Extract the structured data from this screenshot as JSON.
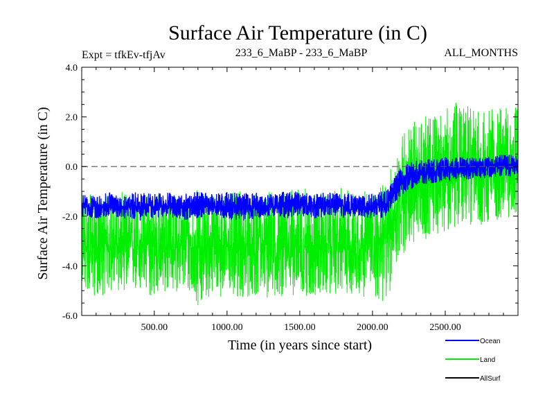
{
  "chart_data": {
    "type": "line",
    "title": "Surface Air Temperature (in C)",
    "subtitle_left": "Expt = tfkEv-tfjAv",
    "subtitle_center": "233_6_MaBP - 233_6_MaBP",
    "subtitle_right": "ALL_MONTHS",
    "xlabel": "Time (in years since start)",
    "ylabel": "Surface Air Temperature (in C)",
    "xlim": [
      1,
      3000
    ],
    "ylim": [
      -6,
      4
    ],
    "xticks": [
      {
        "value": 500,
        "label": "500.00"
      },
      {
        "value": 1000,
        "label": "1000.00"
      },
      {
        "value": 1500,
        "label": "1500.00"
      },
      {
        "value": 2000,
        "label": "2000.00"
      },
      {
        "value": 2500,
        "label": "2500.00"
      }
    ],
    "yticks": [
      {
        "value": 4,
        "label": "4.0"
      },
      {
        "value": 2,
        "label": "2.0"
      },
      {
        "value": 0,
        "label": "0.0"
      },
      {
        "value": -2,
        "label": "-2.0"
      },
      {
        "value": -4,
        "label": "-4.0"
      },
      {
        "value": -6,
        "label": "-6.0"
      }
    ],
    "reference_line": {
      "y": 0,
      "style": "dashed"
    },
    "legend_position": "below-right",
    "series": [
      {
        "name": "Land",
        "color": "#00ee00",
        "x": [
          1,
          100,
          200,
          300,
          400,
          500,
          600,
          700,
          800,
          900,
          1000,
          1100,
          1200,
          1300,
          1400,
          1500,
          1600,
          1700,
          1800,
          1900,
          2000,
          2050,
          2100,
          2150,
          2200,
          2300,
          2400,
          2500,
          2600,
          2700,
          2800,
          2900,
          3000
        ],
        "mean": [
          -3.2,
          -3.2,
          -3.2,
          -3.2,
          -3.2,
          -3.2,
          -3.2,
          -3.2,
          -3.2,
          -3.2,
          -3.2,
          -3.2,
          -3.2,
          -3.2,
          -3.2,
          -3.15,
          -3.15,
          -3.15,
          -3.15,
          -3.15,
          -3.15,
          -3.1,
          -3.0,
          -2.0,
          -1.1,
          -0.7,
          -0.4,
          -0.2,
          -0.2,
          -0.1,
          -0.1,
          -0.05,
          0.0
        ],
        "min": [
          -4.9,
          -5.3,
          -5.1,
          -5.0,
          -5.2,
          -5.3,
          -5.1,
          -5.0,
          -5.6,
          -5.2,
          -5.3,
          -5.4,
          -5.2,
          -5.4,
          -5.2,
          -5.2,
          -5.3,
          -5.2,
          -5.1,
          -5.3,
          -5.2,
          -5.5,
          -5.7,
          -4.2,
          -3.6,
          -3.2,
          -2.8,
          -2.6,
          -2.5,
          -2.3,
          -2.4,
          -2.1,
          -2.0
        ],
        "max": [
          -1.0,
          -1.2,
          -1.1,
          -1.0,
          -1.1,
          -1.0,
          -1.1,
          -1.2,
          -0.9,
          -1.0,
          -1.1,
          -1.0,
          -1.1,
          -0.9,
          -1.0,
          -0.8,
          -1.0,
          -1.1,
          -0.8,
          -1.0,
          -0.9,
          -0.9,
          -0.5,
          0.4,
          1.5,
          1.9,
          2.1,
          2.3,
          2.7,
          2.3,
          2.3,
          2.4,
          2.5
        ]
      },
      {
        "name": "Ocean",
        "color": "#0000ff",
        "x": [
          1,
          100,
          200,
          300,
          400,
          500,
          600,
          700,
          800,
          900,
          1000,
          1100,
          1200,
          1300,
          1400,
          1500,
          1600,
          1700,
          1800,
          1900,
          2000,
          2050,
          2100,
          2150,
          2200,
          2300,
          2400,
          2500,
          2600,
          2700,
          2800,
          2900,
          3000
        ],
        "mean": [
          -1.6,
          -1.6,
          -1.6,
          -1.6,
          -1.6,
          -1.6,
          -1.6,
          -1.6,
          -1.6,
          -1.6,
          -1.6,
          -1.6,
          -1.6,
          -1.6,
          -1.6,
          -1.55,
          -1.55,
          -1.55,
          -1.55,
          -1.55,
          -1.55,
          -1.55,
          -1.5,
          -1.0,
          -0.6,
          -0.35,
          -0.2,
          -0.1,
          -0.05,
          0.0,
          0.0,
          0.05,
          0.05
        ],
        "min": [
          -2.0,
          -2.1,
          -2.0,
          -2.1,
          -2.2,
          -2.1,
          -2.0,
          -2.2,
          -2.1,
          -2.0,
          -2.1,
          -2.2,
          -2.1,
          -2.0,
          -2.1,
          -2.0,
          -2.1,
          -2.0,
          -2.1,
          -2.0,
          -2.1,
          -2.1,
          -2.0,
          -1.5,
          -1.2,
          -0.8,
          -0.7,
          -0.6,
          -0.6,
          -0.5,
          -0.5,
          -0.4,
          -0.4
        ],
        "max": [
          -1.1,
          -1.2,
          -1.0,
          -1.1,
          -1.0,
          -1.1,
          -1.0,
          -1.1,
          -1.0,
          -1.1,
          -1.0,
          -1.1,
          -1.0,
          -1.1,
          -1.0,
          -1.0,
          -1.1,
          -1.0,
          -1.0,
          -1.1,
          -1.0,
          -1.0,
          -0.9,
          -0.4,
          0.0,
          0.3,
          0.3,
          0.4,
          0.4,
          0.4,
          0.4,
          0.5,
          0.5
        ]
      },
      {
        "name": "AllSurf",
        "color": "#000000",
        "x": [],
        "mean": []
      }
    ],
    "legend": [
      {
        "label": "Ocean",
        "color": "#0000ff"
      },
      {
        "label": "Land",
        "color": "#00ee00"
      },
      {
        "label": "AllSurf",
        "color": "#000000"
      }
    ]
  }
}
